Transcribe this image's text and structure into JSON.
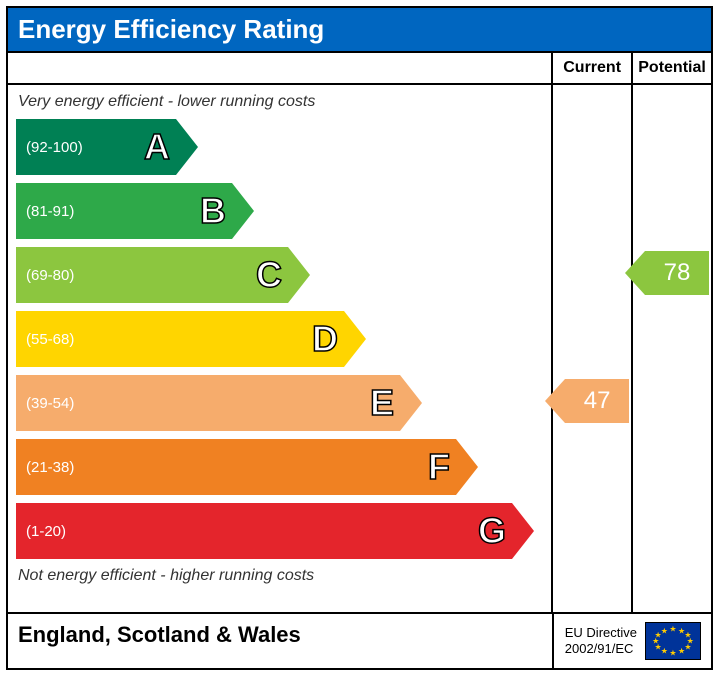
{
  "title": "Energy Efficiency Rating",
  "title_bg": "#0066c0",
  "title_color": "#ffffff",
  "title_fontsize": 26,
  "columns": {
    "current": "Current",
    "potential": "Potential"
  },
  "caption_top": "Very energy efficient - lower running costs",
  "caption_bottom": "Not energy efficient - higher running costs",
  "chart": {
    "type": "bar",
    "band_height": 56,
    "band_gap": 8,
    "base_width": 160,
    "step_width": 56,
    "letter_fontsize": 36,
    "range_fontsize": 15,
    "bands": [
      {
        "letter": "A",
        "range": "(92-100)",
        "color": "#008054",
        "text_color": "#ffffff"
      },
      {
        "letter": "B",
        "range": "(81-91)",
        "color": "#2ea949",
        "text_color": "#ffffff"
      },
      {
        "letter": "C",
        "range": "(69-80)",
        "color": "#8cc63f",
        "text_color": "#ffffff"
      },
      {
        "letter": "D",
        "range": "(55-68)",
        "color": "#ffd500",
        "text_color": "#ffffff"
      },
      {
        "letter": "E",
        "range": "(39-54)",
        "color": "#f6ac6c",
        "text_color": "#ffffff"
      },
      {
        "letter": "F",
        "range": "(21-38)",
        "color": "#f08122",
        "text_color": "#ffffff"
      },
      {
        "letter": "G",
        "range": "(1-20)",
        "color": "#e4252c",
        "text_color": "#ffffff"
      }
    ]
  },
  "current": {
    "value": 47,
    "band_index": 4,
    "color": "#f6ac6c"
  },
  "potential": {
    "value": 78,
    "band_index": 2,
    "color": "#8cc63f"
  },
  "footer": {
    "region": "England, Scotland & Wales",
    "directive_line1": "EU Directive",
    "directive_line2": "2002/91/EC",
    "flag_bg": "#003399",
    "flag_star_color": "#ffcc00"
  }
}
